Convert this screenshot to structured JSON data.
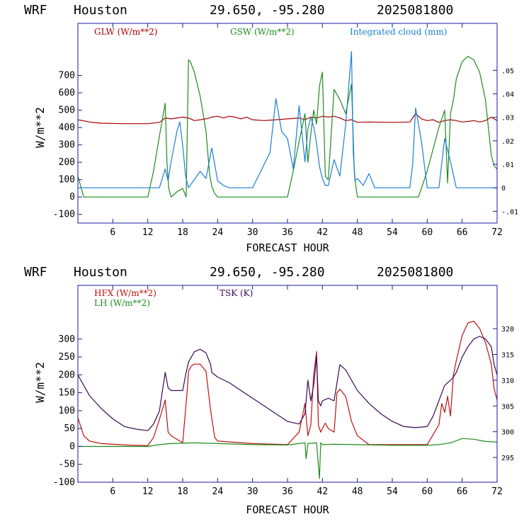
{
  "colors": {
    "frame": "#1a1aa0",
    "glw": "#aa0000",
    "gsw": "#1e8c1e",
    "cloud": "#1a7fd4",
    "hfx": "#c01010",
    "lh": "#1e8c1e",
    "tsk": "#3a0a55"
  },
  "chart_data": [
    {
      "type": "line",
      "header": {
        "model": "WRF",
        "city": "Houston",
        "coords": "29.650, -95.280",
        "date": "2025081800"
      },
      "xlabel": "FORECAST HOUR",
      "ylabel": "W/m**2",
      "xlim": [
        0,
        72
      ],
      "x_ticks": [
        "6",
        "12",
        "18",
        "24",
        "30",
        "36",
        "42",
        "48",
        "54",
        "60",
        "66",
        "72"
      ],
      "ylim": [
        -150,
        1000
      ],
      "y_ticks": [
        "-100",
        "0",
        "100",
        "200",
        "300",
        "400",
        "500",
        "600",
        "700"
      ],
      "y2lim": [
        -0.015,
        0.07
      ],
      "y2_ticks": [
        "-.01",
        "0",
        ".01",
        ".02",
        ".03",
        ".04",
        ".05"
      ],
      "grid": false,
      "series": [
        {
          "name": "GLW (W/m**2)",
          "color_key": "glw",
          "axis": "left",
          "x": [
            0,
            2,
            4,
            8,
            12,
            14,
            15,
            16,
            17,
            18,
            19,
            20,
            21,
            22,
            23,
            24,
            25,
            26,
            27,
            28,
            29,
            30,
            32,
            34,
            36,
            38,
            39,
            40,
            41,
            42,
            43,
            44,
            45,
            46,
            47,
            48,
            50,
            54,
            57,
            58,
            59,
            60,
            61,
            62,
            63,
            64,
            65,
            66,
            67,
            68,
            69,
            70,
            71,
            72
          ],
          "y": [
            445,
            432,
            425,
            422,
            422,
            430,
            455,
            450,
            455,
            460,
            455,
            440,
            445,
            450,
            460,
            465,
            455,
            465,
            460,
            450,
            460,
            445,
            440,
            445,
            450,
            455,
            445,
            460,
            455,
            465,
            460,
            465,
            455,
            440,
            445,
            430,
            432,
            430,
            432,
            480,
            450,
            440,
            445,
            430,
            440,
            445,
            440,
            432,
            435,
            440,
            432,
            440,
            460,
            440
          ]
        },
        {
          "name": "GSW (W/m**2)",
          "color_key": "gsw",
          "axis": "left",
          "x": [
            0,
            0.5,
            1,
            12,
            13,
            14,
            15,
            15.3,
            15.6,
            16,
            17,
            18,
            18.6,
            19,
            19.3,
            20,
            21,
            22,
            22.6,
            23,
            23.5,
            24,
            25,
            30,
            36,
            37,
            38,
            39,
            39.5,
            40,
            40.5,
            41,
            41.5,
            42,
            42.5,
            43,
            44,
            45,
            46,
            47,
            47.5,
            48,
            49,
            54,
            58.5,
            60,
            62,
            63,
            63.5,
            64,
            64.5,
            65,
            66,
            67,
            68,
            69,
            70,
            71,
            71.5,
            72
          ],
          "y": [
            120,
            60,
            0,
            0,
            150,
            350,
            540,
            200,
            50,
            0,
            30,
            50,
            0,
            790,
            780,
            720,
            580,
            380,
            140,
            60,
            20,
            0,
            0,
            0,
            0,
            150,
            320,
            480,
            200,
            360,
            500,
            420,
            640,
            720,
            120,
            100,
            620,
            560,
            480,
            650,
            120,
            0,
            0,
            0,
            0,
            150,
            400,
            500,
            80,
            480,
            560,
            680,
            780,
            810,
            790,
            720,
            560,
            240,
            180,
            160
          ]
        },
        {
          "name": "Integrated cloud (mm)",
          "color_key": "cloud",
          "axis": "right",
          "x": [
            0,
            14,
            15,
            15.5,
            16,
            17,
            17.5,
            18,
            18.5,
            19,
            21,
            22,
            23,
            24,
            25,
            26,
            30,
            33,
            34,
            35,
            36,
            37,
            38,
            39,
            39.5,
            40,
            40.5,
            41,
            41.5,
            42,
            42.5,
            43,
            44,
            45,
            46,
            47,
            47.3,
            47.6,
            48,
            49,
            50,
            51,
            56,
            57,
            57.5,
            58,
            59,
            60,
            62,
            63,
            63.5,
            64,
            65,
            66,
            72
          ],
          "y": [
            0,
            0,
            0.008,
            0.003,
            0.011,
            0.024,
            0.028,
            0.018,
            0.005,
            0,
            0.007,
            0.004,
            0.017,
            0.003,
            0.001,
            0,
            0,
            0.015,
            0.038,
            0.024,
            0.021,
            0.008,
            0.035,
            0.011,
            0.025,
            0.03,
            0.026,
            0.019,
            0.009,
            0.004,
            0.001,
            0.001,
            0.012,
            0.005,
            0.027,
            0.058,
            0.015,
            0.003,
            0.004,
            0.001,
            0.006,
            0,
            0,
            0,
            0.01,
            0.034,
            0.02,
            0,
            0,
            0.021,
            0.016,
            0.011,
            0,
            0,
            0
          ]
        }
      ]
    },
    {
      "type": "line",
      "header": {
        "model": "WRF",
        "city": "Houston",
        "coords": "29.650, -95.280",
        "date": "2025081800"
      },
      "xlabel": "FORECAST HOUR",
      "ylabel": "W/m**2",
      "xlim": [
        0,
        72
      ],
      "x_ticks": [
        "6",
        "12",
        "18",
        "24",
        "30",
        "36",
        "42",
        "48",
        "54",
        "60",
        "66",
        "72"
      ],
      "ylim": [
        -100,
        450
      ],
      "y_ticks": [
        "-100",
        "-50",
        "0",
        "50",
        "100",
        "150",
        "200",
        "250",
        "300"
      ],
      "y2lim": [
        290.2,
        328.4
      ],
      "y2_ticks": [
        "295",
        "300",
        "305",
        "310",
        "315",
        "320"
      ],
      "grid": false,
      "series": [
        {
          "name": "HFX (W/m**2)",
          "color_key": "hfx",
          "axis": "left",
          "x": [
            0,
            1,
            2,
            4,
            8,
            10,
            12,
            13,
            14,
            15,
            15.5,
            16,
            18,
            18.8,
            19,
            19.5,
            20,
            21,
            22,
            22.8,
            23.5,
            24,
            30,
            36,
            38,
            39,
            39.5,
            40,
            40.5,
            41,
            41.3,
            41.7,
            42,
            42.5,
            43,
            44,
            44.5,
            45,
            46,
            47,
            48,
            50,
            54,
            60,
            62,
            62.5,
            63,
            63.5,
            64,
            64.5,
            65,
            66,
            67,
            68,
            69,
            70,
            71,
            71.5,
            72
          ],
          "y": [
            80,
            30,
            15,
            8,
            4,
            3,
            2,
            25,
            75,
            130,
            40,
            30,
            10,
            160,
            210,
            225,
            230,
            230,
            210,
            100,
            25,
            15,
            8,
            5,
            40,
            120,
            30,
            60,
            200,
            265,
            60,
            40,
            50,
            65,
            50,
            40,
            150,
            160,
            140,
            70,
            30,
            5,
            5,
            5,
            60,
            120,
            95,
            140,
            85,
            200,
            240,
            310,
            345,
            350,
            330,
            290,
            230,
            160,
            130
          ]
        },
        {
          "name": "LH (W/m**2)",
          "color_key": "lh",
          "axis": "left",
          "x": [
            0,
            12,
            14,
            16,
            20,
            24,
            30,
            36,
            38,
            39,
            39.2,
            39.5,
            41,
            41.5,
            41.7,
            42,
            44,
            48,
            54,
            60,
            62,
            64,
            66,
            68,
            70,
            72
          ],
          "y": [
            0,
            0,
            5,
            8,
            10,
            8,
            5,
            4,
            8,
            10,
            -35,
            8,
            10,
            -90,
            10,
            5,
            6,
            5,
            3,
            3,
            5,
            10,
            22,
            20,
            14,
            12
          ]
        },
        {
          "name": "TSK (K)",
          "color_key": "tsk",
          "axis": "right",
          "x": [
            0,
            2,
            4,
            6,
            8,
            10,
            12,
            13,
            14,
            15,
            15.5,
            16,
            18,
            18.5,
            19,
            19.5,
            20,
            21,
            22,
            22.8,
            23,
            24,
            26,
            28,
            30,
            32,
            34,
            36,
            38,
            39,
            39.5,
            40,
            40.5,
            41,
            41.3,
            41.7,
            42,
            43,
            44,
            45,
            46,
            48,
            50,
            52,
            54,
            56,
            58,
            60,
            61,
            62,
            63,
            64,
            64.5,
            65,
            66,
            67,
            68,
            69,
            70,
            71,
            71.5,
            72
          ],
          "y": [
            311,
            307,
            304.5,
            302.5,
            301,
            300.5,
            300.2,
            301.5,
            304,
            311.5,
            308.5,
            308,
            308,
            311,
            313.5,
            314.5,
            315.5,
            316,
            315.3,
            313,
            311.5,
            310.6,
            309.5,
            308,
            306.5,
            305,
            303.5,
            302,
            301.5,
            303.5,
            310,
            306,
            309,
            314.5,
            306,
            305,
            306,
            306.5,
            306,
            313,
            312,
            308,
            305.5,
            303.5,
            302,
            301,
            300.8,
            301,
            303,
            306,
            309,
            310,
            310.6,
            311.5,
            314.5,
            316.5,
            318,
            318.5,
            318,
            316.5,
            313,
            311
          ]
        }
      ]
    }
  ]
}
